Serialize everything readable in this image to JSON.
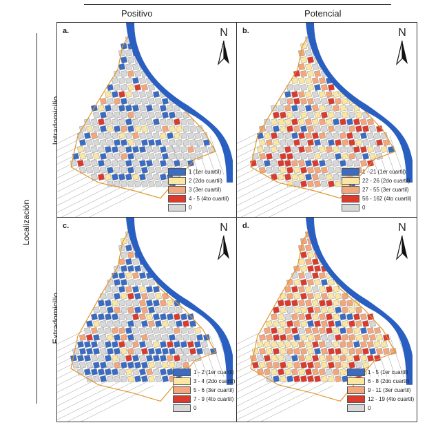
{
  "columns": {
    "col1": "Positivo",
    "col2": "Potencial"
  },
  "rows": {
    "row1": "Intradomicilio",
    "row2": "Extradomicilio"
  },
  "outer_label": "Localización",
  "north_label": "N",
  "colors": {
    "q1": "#3a6cc4",
    "q2": "#fbe7a3",
    "q3": "#f4a77c",
    "q4": "#dd3a2e",
    "zero": "#d8d8d8",
    "sea": "#2a5fc2",
    "boundary": "#e0962b",
    "street": "#9a9a9a"
  },
  "panels": [
    {
      "key": "a",
      "label": "a.",
      "legend": [
        "1 (1er cuartil)",
        "2 (2do cuartil)",
        "3 (3er cuartil)",
        "4 - 5 (4to cuartil)",
        "0"
      ]
    },
    {
      "key": "b",
      "label": "b.",
      "legend": [
        "1 - 21 (1er cuartil)",
        "22 - 26 (2do cuartil)",
        "27 - 55 (3er cuartil)",
        "56 - 162 (4to cuartil)",
        "0"
      ]
    },
    {
      "key": "c",
      "label": "c.",
      "legend": [
        "1 - 2 (1er cuartil)",
        "3 - 4 (2do cuartil)",
        "5 - 6 (3er cuartil)",
        "7 - 9 (4to cuartil)",
        "0"
      ]
    },
    {
      "key": "d",
      "label": "d.",
      "legend": [
        "1 - 5 (1er cuartil)",
        "6 - 8 (2do cuartil)",
        "9 - 11 (3er cuartil)",
        "12 - 19 (4to cuartil)",
        "0"
      ]
    }
  ]
}
